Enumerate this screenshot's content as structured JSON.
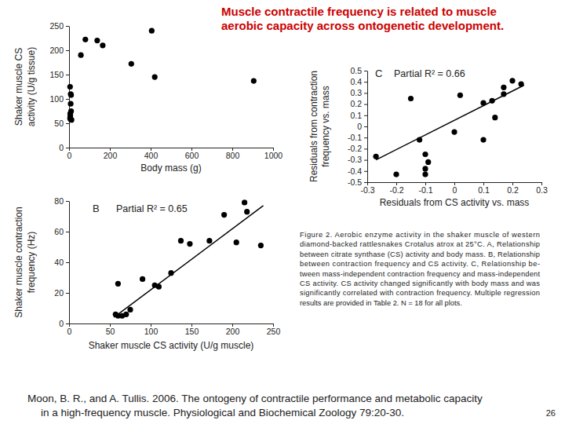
{
  "title": [
    "Muscle contractile frequency is related to muscle",
    "aerobic capacity across ontogenetic development."
  ],
  "chart_data": [
    {
      "type": "scatter",
      "xlabel": "Body mass (g)",
      "ylabel": [
        "Shaker muscle CS",
        "activity (U/g tissue)"
      ],
      "x": [
        5,
        8,
        10,
        8,
        10,
        6,
        6,
        5,
        8,
        12,
        58,
        80,
        138,
        165,
        305,
        405,
        420,
        905
      ],
      "values": [
        125,
        110,
        108,
        90,
        75,
        70,
        65,
        60,
        58,
        57,
        190,
        222,
        220,
        210,
        172,
        240,
        145,
        137
      ],
      "xlim": [
        0,
        1000
      ],
      "ylim": [
        0,
        250
      ],
      "xticks": [
        0,
        200,
        400,
        600,
        800,
        1000
      ],
      "yticks": [
        0,
        50,
        100,
        150,
        200,
        250
      ],
      "color": "#000000",
      "marker": "circle"
    },
    {
      "type": "scatter",
      "panel_label": "B",
      "annotation": "Partial R² = 0.65",
      "xlabel": "Shaker muscle CS activity (U/g muscle)",
      "ylabel": [
        "Shaker muscle contraction",
        "frequency (Hz)"
      ],
      "x": [
        57,
        60,
        65,
        70,
        75,
        60,
        90,
        105,
        110,
        125,
        137,
        148,
        172,
        190,
        205,
        215,
        218,
        235
      ],
      "values": [
        6,
        5,
        5,
        6,
        9,
        26,
        29,
        25,
        24,
        33,
        54,
        52,
        54,
        71,
        53,
        79,
        73,
        51
      ],
      "fit_line": {
        "x": [
          55,
          238
        ],
        "values": [
          4,
          77
        ]
      },
      "xlim": [
        0,
        250
      ],
      "ylim": [
        0,
        80
      ],
      "xticks": [
        0,
        50,
        100,
        150,
        200,
        250
      ],
      "yticks": [
        0,
        20,
        40,
        60,
        80
      ],
      "color": "#000000",
      "marker": "circle"
    },
    {
      "type": "scatter",
      "panel_label": "C",
      "annotation": "Partial R² = 0.66",
      "xlabel": "Residuals from CS activity vs. mass",
      "ylabel": [
        "Residuals from contraction",
        "frequency vs. mass"
      ],
      "x": [
        -0.27,
        -0.2,
        -0.15,
        -0.12,
        -0.1,
        -0.09,
        -0.1,
        -0.1,
        0.0,
        0.02,
        0.1,
        0.1,
        0.13,
        0.14,
        0.17,
        0.17,
        0.2,
        0.23
      ],
      "values": [
        -0.27,
        -0.43,
        0.25,
        -0.12,
        -0.25,
        -0.32,
        -0.38,
        -0.43,
        -0.05,
        0.28,
        0.21,
        -0.12,
        0.23,
        0.08,
        0.35,
        0.29,
        0.41,
        0.38
      ],
      "fit_line": {
        "x": [
          -0.27,
          0.24
        ],
        "values": [
          -0.3,
          0.37
        ]
      },
      "xlim": [
        -0.3,
        0.3
      ],
      "ylim": [
        -0.5,
        0.5
      ],
      "xticks": [
        -0.3,
        -0.2,
        -0.1,
        0,
        0.1,
        0.2,
        0.3
      ],
      "yticks": [
        -0.5,
        -0.4,
        -0.3,
        -0.2,
        -0.1,
        0,
        0.1,
        0.2,
        0.3,
        0.4,
        0.5
      ],
      "color": "#000000",
      "marker": "circle"
    }
  ],
  "caption": [
    "Figure 2. Aerobic enzyme activity in the shaker muscle of western",
    "diamond-backed rattlesnakes Crotalus atrox at 25°C. A, Relationship",
    "between citrate synthase (CS) activity and body mass. B, Relationship",
    "between contraction frequency and CS activity. C, Relationship be-",
    "tween mass-independent contraction frequency and mass-independent",
    "CS activity. CS activity changed significantly with body mass and was",
    "significantly correlated with contraction frequency. Multiple regression",
    "results are provided in Table 2. N = 18 for all plots."
  ],
  "citation": [
    "Moon, B. R., and A. Tullis. 2006. The ontogeny of contractile performance and metabolic capacity",
    "in a high-frequency muscle. Physiological and Biochemical Zoology 79:20-30."
  ],
  "page_number": "26"
}
